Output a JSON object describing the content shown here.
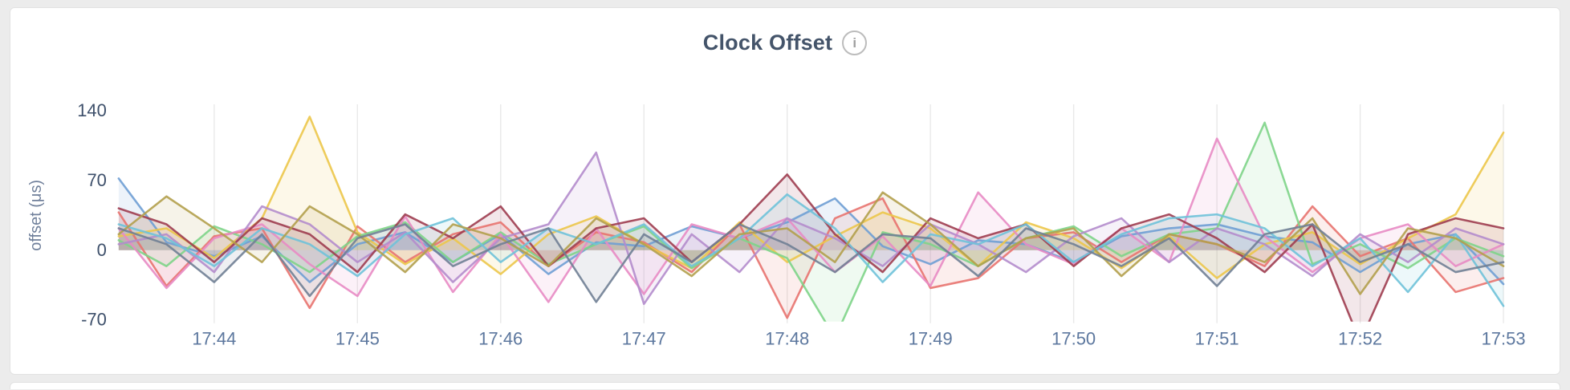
{
  "card": {
    "title": "Clock Offset",
    "info_glyph": "i"
  },
  "chart_data": {
    "type": "line",
    "title": "Clock Offset",
    "xlabel": "",
    "ylabel": "offset (μs)",
    "ylim": [
      -70,
      140
    ],
    "y_ticks": [
      140,
      70,
      0,
      -70
    ],
    "x_count": 30,
    "x_tick_indices": [
      2,
      5,
      8,
      11,
      14,
      17,
      20,
      23,
      26,
      29
    ],
    "x_tick_labels": [
      "17:44",
      "17:45",
      "17:46",
      "17:47",
      "17:48",
      "17:49",
      "17:50",
      "17:51",
      "17:52",
      "17:53"
    ],
    "grid": "vertical",
    "legend": "none",
    "fill_opacity": 0.12,
    "axis_text_color": "#5c779e",
    "grid_color": "#e9e9e9",
    "series": [
      {
        "name": "series-1",
        "color": "#6f9fd4",
        "values": [
          72,
          8,
          -6,
          14,
          -32,
          6,
          18,
          -12,
          16,
          -24,
          8,
          4,
          24,
          12,
          28,
          52,
          4,
          -14,
          10,
          6,
          -12,
          14,
          22,
          26,
          14,
          8,
          -22,
          6,
          16,
          -34
        ]
      },
      {
        "name": "series-2",
        "color": "#e8736f",
        "values": [
          38,
          -36,
          14,
          22,
          -58,
          24,
          -12,
          16,
          28,
          -16,
          18,
          8,
          -22,
          26,
          -68,
          32,
          52,
          -38,
          -28,
          12,
          18,
          -12,
          16,
          6,
          -16,
          44,
          -6,
          12,
          -42,
          -28
        ]
      },
      {
        "name": "series-3",
        "color": "#ecc64a",
        "values": [
          14,
          22,
          -8,
          32,
          134,
          18,
          -14,
          12,
          -24,
          16,
          34,
          6,
          -18,
          28,
          -12,
          14,
          38,
          22,
          -16,
          28,
          12,
          -18,
          14,
          -28,
          6,
          18,
          -14,
          12,
          36,
          118
        ]
      },
      {
        "name": "series-4",
        "color": "#7ed488",
        "values": [
          10,
          -16,
          24,
          6,
          -22,
          14,
          28,
          -12,
          18,
          -14,
          6,
          24,
          -18,
          12,
          -8,
          -88,
          18,
          6,
          -16,
          12,
          24,
          -6,
          16,
          22,
          128,
          -14,
          6,
          -18,
          12,
          -6
        ]
      },
      {
        "name": "series-5",
        "color": "#e88bc4",
        "values": [
          22,
          -38,
          12,
          26,
          -14,
          -46,
          34,
          -42,
          16,
          -52,
          22,
          -44,
          26,
          12,
          32,
          -22,
          14,
          -36,
          58,
          6,
          -14,
          22,
          -12,
          112,
          14,
          -22,
          12,
          26,
          -16,
          6
        ]
      },
      {
        "name": "series-6",
        "color": "#b48ccc",
        "values": [
          6,
          16,
          -22,
          44,
          26,
          -12,
          18,
          -32,
          12,
          26,
          98,
          -54,
          16,
          -22,
          32,
          12,
          -16,
          26,
          6,
          -22,
          14,
          32,
          -12,
          22,
          6,
          -26,
          16,
          -12,
          22,
          6
        ]
      },
      {
        "name": "series-7",
        "color": "#9e3d50",
        "values": [
          42,
          26,
          -12,
          32,
          16,
          -22,
          36,
          12,
          44,
          -16,
          22,
          32,
          -12,
          26,
          76,
          16,
          -22,
          32,
          12,
          26,
          -16,
          22,
          36,
          12,
          -22,
          26,
          -92,
          16,
          32,
          22
        ]
      },
      {
        "name": "series-8",
        "color": "#6fc2d9",
        "values": [
          26,
          12,
          -16,
          22,
          6,
          -26,
          16,
          32,
          -12,
          22,
          6,
          26,
          -16,
          12,
          56,
          22,
          -32,
          16,
          6,
          26,
          -12,
          16,
          32,
          36,
          22,
          -16,
          12,
          -42,
          16,
          -56
        ]
      },
      {
        "name": "series-9",
        "color": "#b3a04c",
        "values": [
          16,
          54,
          22,
          -12,
          44,
          16,
          -22,
          26,
          12,
          -16,
          32,
          6,
          -26,
          16,
          22,
          -12,
          58,
          26,
          -16,
          12,
          22,
          -26,
          16,
          6,
          -12,
          32,
          -44,
          22,
          12,
          -16
        ]
      },
      {
        "name": "series-10",
        "color": "#707f95",
        "values": [
          22,
          6,
          -32,
          16,
          -46,
          12,
          26,
          -16,
          6,
          22,
          -52,
          16,
          -12,
          26,
          6,
          -22,
          16,
          12,
          -26,
          22,
          6,
          -16,
          12,
          -36,
          16,
          26,
          -12,
          6,
          -22,
          -12
        ]
      }
    ]
  }
}
